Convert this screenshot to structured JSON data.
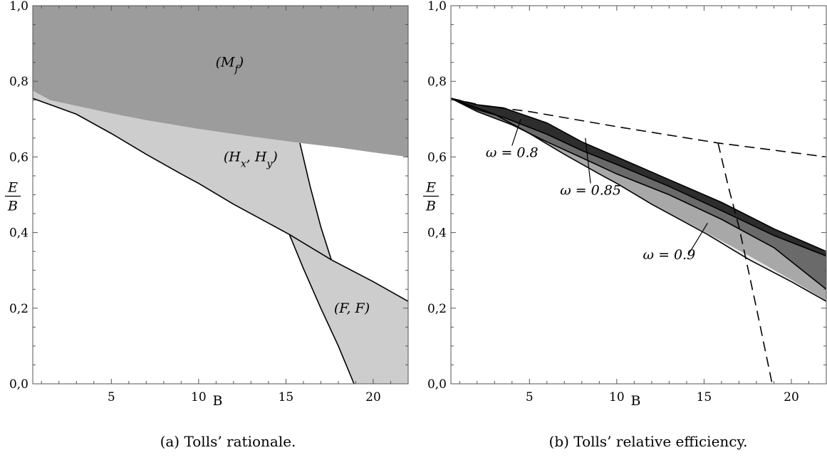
{
  "colors": {
    "mf_region": "#9c9c9c",
    "light_region": "#cdcdcd",
    "eff_080": "#2d2d2d",
    "eff_085": "#6a6a6a",
    "eff_090": "#a8a8a8",
    "eff_rest": "#e6e6e6",
    "line": "#000000"
  },
  "chart_data": [
    {
      "type": "area",
      "caption": "(a) Tolls’ rationale.",
      "xlabel": "B",
      "ylabel_num": "E",
      "ylabel_den": "B",
      "xlim": [
        0.5,
        22
      ],
      "ylim": [
        0,
        1
      ],
      "xticks": [
        5,
        10,
        15,
        20
      ],
      "xtick_labels": [
        "5",
        "10",
        "15",
        "20"
      ],
      "yticks": [
        0,
        0.2,
        0.4,
        0.6,
        0.8,
        1.0
      ],
      "ytick_labels": [
        "0,0",
        "0,2",
        "0,4",
        "0,6",
        "0,8",
        "1,0"
      ],
      "grid": false,
      "region_labels": [
        {
          "text": "(M_f)",
          "x": 13.0,
          "y": 0.85
        },
        {
          "text": "(H_x, H_y)",
          "x": 14.2,
          "y": 0.6
        },
        {
          "text": "(F, F)",
          "x": 20.0,
          "y": 0.2
        }
      ],
      "curves": {
        "mf_boundary": {
          "x": [
            0.5,
            1.5,
            3,
            5,
            7,
            10,
            13,
            15.8,
            18,
            20,
            22
          ],
          "y": [
            0.775,
            0.75,
            0.735,
            0.715,
            0.697,
            0.674,
            0.654,
            0.637,
            0.625,
            0.612,
            0.6
          ]
        },
        "lower_line": {
          "x": [
            0.5,
            3,
            5,
            7,
            9,
            10,
            12,
            15.2,
            17.6,
            20,
            22
          ],
          "y": [
            0.755,
            0.713,
            0.662,
            0.607,
            0.555,
            0.53,
            0.475,
            0.395,
            0.328,
            0.27,
            0.218
          ]
        },
        "hxhy_right": {
          "x": [
            15.8,
            16.4,
            17.0,
            17.6
          ],
          "y": [
            0.637,
            0.52,
            0.415,
            0.328
          ]
        },
        "ff_left": {
          "x": [
            15.2,
            16.0,
            17.0,
            18.0,
            18.9
          ],
          "y": [
            0.395,
            0.305,
            0.2,
            0.1,
            0.0
          ]
        }
      }
    },
    {
      "type": "area",
      "caption": "(b) Tolls’ relative efficiency.",
      "xlabel": "B",
      "ylabel_num": "E",
      "ylabel_den": "B",
      "xlim": [
        0.5,
        22
      ],
      "ylim": [
        0,
        1
      ],
      "xticks": [
        5,
        10,
        15,
        20
      ],
      "xtick_labels": [
        "5",
        "10",
        "15",
        "20"
      ],
      "yticks": [
        0,
        0.2,
        0.4,
        0.6,
        0.8,
        1.0
      ],
      "ytick_labels": [
        "0,0",
        "0,2",
        "0,4",
        "0,6",
        "0,8",
        "1,0"
      ],
      "grid": false,
      "annotations": [
        {
          "text": "ω = 0.8",
          "x": 4.0,
          "y": 0.6,
          "to_x": 4.5,
          "to_y": 0.7
        },
        {
          "text": "ω = 0.85",
          "x": 8.5,
          "y": 0.5,
          "to_x": 8.2,
          "to_y": 0.65
        },
        {
          "text": "ω = 0.9",
          "x": 13.0,
          "y": 0.33,
          "to_x": 15.2,
          "to_y": 0.425
        }
      ],
      "curves": {
        "lower_line": {
          "x": [
            0.5,
            3,
            5,
            7,
            9,
            10,
            12,
            15.2,
            17.6,
            20,
            22
          ],
          "y": [
            0.755,
            0.713,
            0.662,
            0.607,
            0.555,
            0.53,
            0.475,
            0.395,
            0.328,
            0.27,
            0.218
          ]
        },
        "w080_upper": {
          "x": [
            0.5,
            2,
            3.5,
            6,
            8,
            10,
            13,
            16,
            19,
            22
          ],
          "y": [
            0.755,
            0.738,
            0.73,
            0.69,
            0.64,
            0.6,
            0.54,
            0.48,
            0.41,
            0.35
          ]
        },
        "w080_lower": {
          "x": [
            0.5,
            2,
            3.5,
            6,
            8,
            10,
            13,
            16,
            19,
            22
          ],
          "y": [
            0.755,
            0.725,
            0.705,
            0.66,
            0.617,
            0.58,
            0.522,
            0.458,
            0.392,
            0.338
          ]
        },
        "w085_lower": {
          "x": [
            0.5,
            2,
            4,
            6,
            8,
            10,
            13,
            16,
            19,
            22
          ],
          "y": [
            0.755,
            0.72,
            0.685,
            0.64,
            0.598,
            0.555,
            0.5,
            0.435,
            0.36,
            0.25
          ]
        },
        "w090_lower": {
          "x": [
            0.5,
            3,
            5,
            7,
            9,
            10,
            12,
            15.2,
            17.6,
            20,
            22
          ],
          "y": [
            0.755,
            0.713,
            0.662,
            0.607,
            0.555,
            0.53,
            0.475,
            0.398,
            0.338,
            0.275,
            0.22
          ]
        },
        "dashed_top": {
          "x": [
            0.5,
            2.4,
            5,
            10,
            15.8,
            22
          ],
          "y": [
            0.755,
            0.735,
            0.72,
            0.68,
            0.637,
            0.6
          ]
        },
        "dashed_right": {
          "x": [
            15.8,
            16.4,
            17.0,
            18.0,
            18.9
          ],
          "y": [
            0.637,
            0.52,
            0.415,
            0.2,
            0.0
          ]
        }
      }
    }
  ]
}
